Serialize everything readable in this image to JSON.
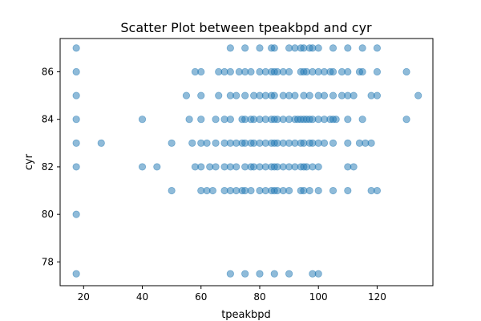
{
  "chart_data": {
    "type": "scatter",
    "title": "Scatter Plot between tpeakbpd and cyr",
    "xlabel": "tpeakbpd",
    "ylabel": "cyr",
    "xlim": [
      12,
      139
    ],
    "ylim": [
      77,
      87.4
    ],
    "xticks": [
      20,
      40,
      60,
      80,
      100,
      120
    ],
    "yticks": [
      78,
      80,
      82,
      84,
      86
    ],
    "grid": false,
    "series": [
      {
        "color": "#1f77b4",
        "opacity": 0.5,
        "points": [
          [
            17.5,
            77.5
          ],
          [
            17.5,
            80
          ],
          [
            17.5,
            82
          ],
          [
            17.5,
            83
          ],
          [
            17.5,
            84
          ],
          [
            17.5,
            85
          ],
          [
            17.5,
            86
          ],
          [
            17.5,
            87
          ],
          [
            26,
            83
          ],
          [
            40,
            82
          ],
          [
            40,
            84
          ],
          [
            45,
            82
          ],
          [
            50,
            81
          ],
          [
            50,
            83
          ],
          [
            55,
            85
          ],
          [
            56,
            84
          ],
          [
            57,
            83
          ],
          [
            58,
            82
          ],
          [
            58,
            86
          ],
          [
            60,
            81
          ],
          [
            60,
            82
          ],
          [
            60,
            83
          ],
          [
            60,
            84
          ],
          [
            60,
            85
          ],
          [
            60,
            86
          ],
          [
            62,
            81
          ],
          [
            62,
            83
          ],
          [
            63,
            82
          ],
          [
            64,
            81
          ],
          [
            65,
            82
          ],
          [
            65,
            83
          ],
          [
            65,
            84
          ],
          [
            66,
            85
          ],
          [
            66,
            86
          ],
          [
            68,
            81
          ],
          [
            68,
            82
          ],
          [
            68,
            83
          ],
          [
            68,
            84
          ],
          [
            68,
            86
          ],
          [
            70,
            77.5
          ],
          [
            70,
            81
          ],
          [
            70,
            82
          ],
          [
            70,
            83
          ],
          [
            70,
            84
          ],
          [
            70,
            85
          ],
          [
            70,
            86
          ],
          [
            70,
            87
          ],
          [
            72,
            81
          ],
          [
            72,
            82
          ],
          [
            72,
            83
          ],
          [
            72,
            85
          ],
          [
            73,
            86
          ],
          [
            74,
            81
          ],
          [
            74,
            83
          ],
          [
            74,
            84
          ],
          [
            75,
            77.5
          ],
          [
            75,
            81
          ],
          [
            75,
            82
          ],
          [
            75,
            83
          ],
          [
            75,
            84
          ],
          [
            75,
            85
          ],
          [
            75,
            86
          ],
          [
            75,
            87
          ],
          [
            77,
            81
          ],
          [
            77,
            82
          ],
          [
            77,
            83
          ],
          [
            77,
            84
          ],
          [
            77,
            86
          ],
          [
            78,
            82
          ],
          [
            78,
            83
          ],
          [
            78,
            84
          ],
          [
            78,
            85
          ],
          [
            80,
            77.5
          ],
          [
            80,
            81
          ],
          [
            80,
            82
          ],
          [
            80,
            83
          ],
          [
            80,
            84
          ],
          [
            80,
            85
          ],
          [
            80,
            86
          ],
          [
            80,
            87
          ],
          [
            82,
            81
          ],
          [
            82,
            82
          ],
          [
            82,
            83
          ],
          [
            82,
            84
          ],
          [
            82,
            85
          ],
          [
            82,
            86
          ],
          [
            84,
            81
          ],
          [
            84,
            82
          ],
          [
            84,
            83
          ],
          [
            84,
            84
          ],
          [
            84,
            85
          ],
          [
            84,
            86
          ],
          [
            84,
            87
          ],
          [
            85,
            77.5
          ],
          [
            85,
            81
          ],
          [
            85,
            82
          ],
          [
            85,
            83
          ],
          [
            85,
            84
          ],
          [
            85,
            85
          ],
          [
            85,
            86
          ],
          [
            85,
            87
          ],
          [
            86,
            81
          ],
          [
            86,
            82
          ],
          [
            86,
            83
          ],
          [
            86,
            84
          ],
          [
            86,
            86
          ],
          [
            88,
            81
          ],
          [
            88,
            82
          ],
          [
            88,
            83
          ],
          [
            88,
            84
          ],
          [
            88,
            85
          ],
          [
            88,
            86
          ],
          [
            90,
            77.5
          ],
          [
            90,
            81
          ],
          [
            90,
            82
          ],
          [
            90,
            83
          ],
          [
            90,
            84
          ],
          [
            90,
            85
          ],
          [
            90,
            86
          ],
          [
            90,
            87
          ],
          [
            92,
            82
          ],
          [
            92,
            83
          ],
          [
            92,
            84
          ],
          [
            92,
            85
          ],
          [
            92,
            87
          ],
          [
            93,
            84
          ],
          [
            94,
            81
          ],
          [
            94,
            82
          ],
          [
            94,
            83
          ],
          [
            94,
            84
          ],
          [
            94,
            86
          ],
          [
            94,
            87
          ],
          [
            95,
            81
          ],
          [
            95,
            82
          ],
          [
            95,
            83
          ],
          [
            95,
            84
          ],
          [
            95,
            85
          ],
          [
            95,
            86
          ],
          [
            95,
            87
          ],
          [
            96,
            82
          ],
          [
            96,
            84
          ],
          [
            96,
            86
          ],
          [
            97,
            81
          ],
          [
            97,
            83
          ],
          [
            97,
            84
          ],
          [
            97,
            85
          ],
          [
            97,
            87
          ],
          [
            98,
            77.5
          ],
          [
            98,
            82
          ],
          [
            98,
            83
          ],
          [
            98,
            84
          ],
          [
            98,
            86
          ],
          [
            98,
            87
          ],
          [
            100,
            77.5
          ],
          [
            100,
            81
          ],
          [
            100,
            82
          ],
          [
            100,
            83
          ],
          [
            100,
            84
          ],
          [
            100,
            85
          ],
          [
            100,
            86
          ],
          [
            100,
            87
          ],
          [
            102,
            83
          ],
          [
            102,
            84
          ],
          [
            102,
            85
          ],
          [
            102,
            86
          ],
          [
            104,
            84
          ],
          [
            104,
            86
          ],
          [
            105,
            81
          ],
          [
            105,
            83
          ],
          [
            105,
            84
          ],
          [
            105,
            85
          ],
          [
            105,
            86
          ],
          [
            105,
            87
          ],
          [
            106,
            84
          ],
          [
            108,
            85
          ],
          [
            108,
            86
          ],
          [
            110,
            81
          ],
          [
            110,
            82
          ],
          [
            110,
            83
          ],
          [
            110,
            84
          ],
          [
            110,
            85
          ],
          [
            110,
            86
          ],
          [
            110,
            87
          ],
          [
            112,
            82
          ],
          [
            112,
            85
          ],
          [
            114,
            83
          ],
          [
            114,
            86
          ],
          [
            115,
            84
          ],
          [
            115,
            86
          ],
          [
            115,
            87
          ],
          [
            116,
            83
          ],
          [
            118,
            81
          ],
          [
            118,
            83
          ],
          [
            118,
            85
          ],
          [
            120,
            81
          ],
          [
            120,
            85
          ],
          [
            120,
            86
          ],
          [
            120,
            87
          ],
          [
            130,
            84
          ],
          [
            130,
            86
          ],
          [
            134,
            85
          ]
        ]
      }
    ]
  }
}
